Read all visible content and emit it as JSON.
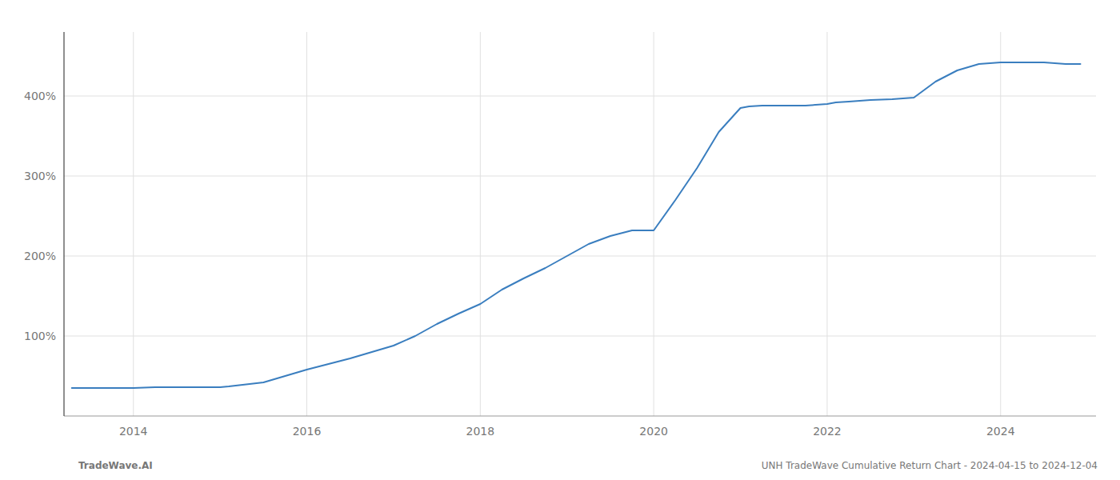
{
  "chart_data": {
    "type": "line",
    "x": [
      2013.29,
      2013.5,
      2013.75,
      2014.0,
      2014.25,
      2014.5,
      2014.75,
      2015.0,
      2015.1,
      2015.5,
      2015.75,
      2016.0,
      2016.25,
      2016.5,
      2016.75,
      2017.0,
      2017.25,
      2017.5,
      2017.75,
      2018.0,
      2018.25,
      2018.5,
      2018.75,
      2019.0,
      2019.25,
      2019.5,
      2019.75,
      2020.0,
      2020.25,
      2020.5,
      2020.75,
      2021.0,
      2021.1,
      2021.25,
      2021.5,
      2021.75,
      2022.0,
      2022.1,
      2022.25,
      2022.5,
      2022.75,
      2023.0,
      2023.25,
      2023.5,
      2023.75,
      2024.0,
      2024.25,
      2024.5,
      2024.75,
      2024.92
    ],
    "values": [
      35,
      35,
      35,
      35,
      36,
      36,
      36,
      36,
      37,
      42,
      50,
      58,
      65,
      72,
      80,
      88,
      100,
      115,
      128,
      140,
      158,
      172,
      185,
      200,
      215,
      225,
      232,
      232,
      270,
      310,
      355,
      385,
      387,
      388,
      388,
      388,
      390,
      392,
      393,
      395,
      396,
      398,
      418,
      432,
      440,
      442,
      442,
      442,
      440,
      440
    ],
    "color": "#3a7ebf",
    "xlim": [
      2013.2,
      2025.1
    ],
    "ylim": [
      0,
      480
    ],
    "xticks": [
      2014,
      2016,
      2018,
      2020,
      2022,
      2024
    ],
    "yticks": [
      {
        "value": 100,
        "label": "100%"
      },
      {
        "value": 200,
        "label": "200%"
      },
      {
        "value": 300,
        "label": "300%"
      },
      {
        "value": 400,
        "label": "400%"
      }
    ],
    "grid": true,
    "annotations": [
      "TradeWave.AI",
      "UNH TradeWave Cumulative Return Chart - 2024-04-15 to 2024-12-04"
    ]
  }
}
